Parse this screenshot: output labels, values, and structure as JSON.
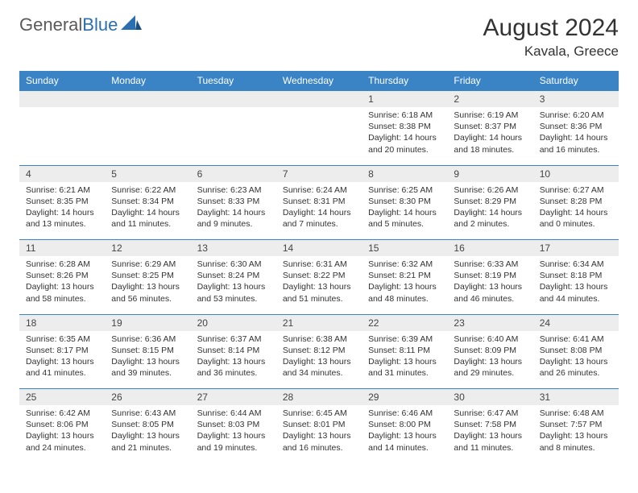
{
  "logo": {
    "text_general": "General",
    "text_blue": "Blue"
  },
  "header": {
    "month_title": "August 2024",
    "location": "Kavala, Greece"
  },
  "colors": {
    "header_bg": "#3a84c6",
    "header_text": "#ffffff",
    "daynum_bg": "#ededed",
    "border": "#3a84c6",
    "logo_blue": "#2b6fb0",
    "text": "#333333"
  },
  "day_headers": [
    "Sunday",
    "Monday",
    "Tuesday",
    "Wednesday",
    "Thursday",
    "Friday",
    "Saturday"
  ],
  "weeks": [
    [
      null,
      null,
      null,
      null,
      {
        "num": "1",
        "sunrise": "Sunrise: 6:18 AM",
        "sunset": "Sunset: 8:38 PM",
        "daylight": "Daylight: 14 hours and 20 minutes."
      },
      {
        "num": "2",
        "sunrise": "Sunrise: 6:19 AM",
        "sunset": "Sunset: 8:37 PM",
        "daylight": "Daylight: 14 hours and 18 minutes."
      },
      {
        "num": "3",
        "sunrise": "Sunrise: 6:20 AM",
        "sunset": "Sunset: 8:36 PM",
        "daylight": "Daylight: 14 hours and 16 minutes."
      }
    ],
    [
      {
        "num": "4",
        "sunrise": "Sunrise: 6:21 AM",
        "sunset": "Sunset: 8:35 PM",
        "daylight": "Daylight: 14 hours and 13 minutes."
      },
      {
        "num": "5",
        "sunrise": "Sunrise: 6:22 AM",
        "sunset": "Sunset: 8:34 PM",
        "daylight": "Daylight: 14 hours and 11 minutes."
      },
      {
        "num": "6",
        "sunrise": "Sunrise: 6:23 AM",
        "sunset": "Sunset: 8:33 PM",
        "daylight": "Daylight: 14 hours and 9 minutes."
      },
      {
        "num": "7",
        "sunrise": "Sunrise: 6:24 AM",
        "sunset": "Sunset: 8:31 PM",
        "daylight": "Daylight: 14 hours and 7 minutes."
      },
      {
        "num": "8",
        "sunrise": "Sunrise: 6:25 AM",
        "sunset": "Sunset: 8:30 PM",
        "daylight": "Daylight: 14 hours and 5 minutes."
      },
      {
        "num": "9",
        "sunrise": "Sunrise: 6:26 AM",
        "sunset": "Sunset: 8:29 PM",
        "daylight": "Daylight: 14 hours and 2 minutes."
      },
      {
        "num": "10",
        "sunrise": "Sunrise: 6:27 AM",
        "sunset": "Sunset: 8:28 PM",
        "daylight": "Daylight: 14 hours and 0 minutes."
      }
    ],
    [
      {
        "num": "11",
        "sunrise": "Sunrise: 6:28 AM",
        "sunset": "Sunset: 8:26 PM",
        "daylight": "Daylight: 13 hours and 58 minutes."
      },
      {
        "num": "12",
        "sunrise": "Sunrise: 6:29 AM",
        "sunset": "Sunset: 8:25 PM",
        "daylight": "Daylight: 13 hours and 56 minutes."
      },
      {
        "num": "13",
        "sunrise": "Sunrise: 6:30 AM",
        "sunset": "Sunset: 8:24 PM",
        "daylight": "Daylight: 13 hours and 53 minutes."
      },
      {
        "num": "14",
        "sunrise": "Sunrise: 6:31 AM",
        "sunset": "Sunset: 8:22 PM",
        "daylight": "Daylight: 13 hours and 51 minutes."
      },
      {
        "num": "15",
        "sunrise": "Sunrise: 6:32 AM",
        "sunset": "Sunset: 8:21 PM",
        "daylight": "Daylight: 13 hours and 48 minutes."
      },
      {
        "num": "16",
        "sunrise": "Sunrise: 6:33 AM",
        "sunset": "Sunset: 8:19 PM",
        "daylight": "Daylight: 13 hours and 46 minutes."
      },
      {
        "num": "17",
        "sunrise": "Sunrise: 6:34 AM",
        "sunset": "Sunset: 8:18 PM",
        "daylight": "Daylight: 13 hours and 44 minutes."
      }
    ],
    [
      {
        "num": "18",
        "sunrise": "Sunrise: 6:35 AM",
        "sunset": "Sunset: 8:17 PM",
        "daylight": "Daylight: 13 hours and 41 minutes."
      },
      {
        "num": "19",
        "sunrise": "Sunrise: 6:36 AM",
        "sunset": "Sunset: 8:15 PM",
        "daylight": "Daylight: 13 hours and 39 minutes."
      },
      {
        "num": "20",
        "sunrise": "Sunrise: 6:37 AM",
        "sunset": "Sunset: 8:14 PM",
        "daylight": "Daylight: 13 hours and 36 minutes."
      },
      {
        "num": "21",
        "sunrise": "Sunrise: 6:38 AM",
        "sunset": "Sunset: 8:12 PM",
        "daylight": "Daylight: 13 hours and 34 minutes."
      },
      {
        "num": "22",
        "sunrise": "Sunrise: 6:39 AM",
        "sunset": "Sunset: 8:11 PM",
        "daylight": "Daylight: 13 hours and 31 minutes."
      },
      {
        "num": "23",
        "sunrise": "Sunrise: 6:40 AM",
        "sunset": "Sunset: 8:09 PM",
        "daylight": "Daylight: 13 hours and 29 minutes."
      },
      {
        "num": "24",
        "sunrise": "Sunrise: 6:41 AM",
        "sunset": "Sunset: 8:08 PM",
        "daylight": "Daylight: 13 hours and 26 minutes."
      }
    ],
    [
      {
        "num": "25",
        "sunrise": "Sunrise: 6:42 AM",
        "sunset": "Sunset: 8:06 PM",
        "daylight": "Daylight: 13 hours and 24 minutes."
      },
      {
        "num": "26",
        "sunrise": "Sunrise: 6:43 AM",
        "sunset": "Sunset: 8:05 PM",
        "daylight": "Daylight: 13 hours and 21 minutes."
      },
      {
        "num": "27",
        "sunrise": "Sunrise: 6:44 AM",
        "sunset": "Sunset: 8:03 PM",
        "daylight": "Daylight: 13 hours and 19 minutes."
      },
      {
        "num": "28",
        "sunrise": "Sunrise: 6:45 AM",
        "sunset": "Sunset: 8:01 PM",
        "daylight": "Daylight: 13 hours and 16 minutes."
      },
      {
        "num": "29",
        "sunrise": "Sunrise: 6:46 AM",
        "sunset": "Sunset: 8:00 PM",
        "daylight": "Daylight: 13 hours and 14 minutes."
      },
      {
        "num": "30",
        "sunrise": "Sunrise: 6:47 AM",
        "sunset": "Sunset: 7:58 PM",
        "daylight": "Daylight: 13 hours and 11 minutes."
      },
      {
        "num": "31",
        "sunrise": "Sunrise: 6:48 AM",
        "sunset": "Sunset: 7:57 PM",
        "daylight": "Daylight: 13 hours and 8 minutes."
      }
    ]
  ]
}
